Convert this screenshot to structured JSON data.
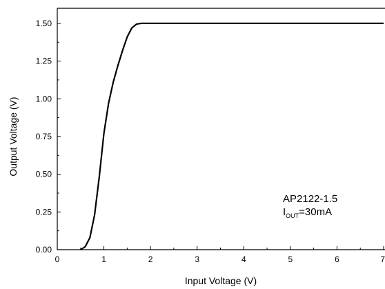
{
  "chart_data": {
    "type": "line",
    "title": "",
    "xlabel": "Input Voltage (V)",
    "ylabel": "Output Voltage (V)",
    "xlim": [
      0,
      7
    ],
    "ylim": [
      0,
      1.6
    ],
    "xticks": [
      0,
      1,
      2,
      3,
      4,
      5,
      6,
      7
    ],
    "xtick_labels": [
      "0",
      "1",
      "2",
      "3",
      "4",
      "5",
      "6",
      "7"
    ],
    "yticks": [
      0,
      0.25,
      0.5,
      0.75,
      1.0,
      1.25,
      1.5
    ],
    "ytick_labels": [
      "0.00",
      "0.25",
      "0.50",
      "0.75",
      "1.00",
      "1.25",
      "1.50"
    ],
    "grid": false,
    "legend": "none",
    "series": [
      {
        "color": "#000000",
        "x": [
          0.5,
          0.6,
          0.7,
          0.8,
          0.9,
          1.0,
          1.1,
          1.2,
          1.3,
          1.4,
          1.5,
          1.6,
          1.7,
          1.8,
          2.0,
          3.0,
          4.0,
          5.0,
          6.0,
          7.0
        ],
        "y": [
          0.0,
          0.02,
          0.08,
          0.23,
          0.48,
          0.77,
          0.97,
          1.11,
          1.22,
          1.32,
          1.41,
          1.47,
          1.495,
          1.5,
          1.5,
          1.5,
          1.5,
          1.5,
          1.5,
          1.5
        ]
      }
    ],
    "annotation": {
      "line1": "AP2122-1.5",
      "line2_prefix": "I",
      "line2_subscript": "OUT",
      "line2_suffix": "=30mA"
    }
  }
}
